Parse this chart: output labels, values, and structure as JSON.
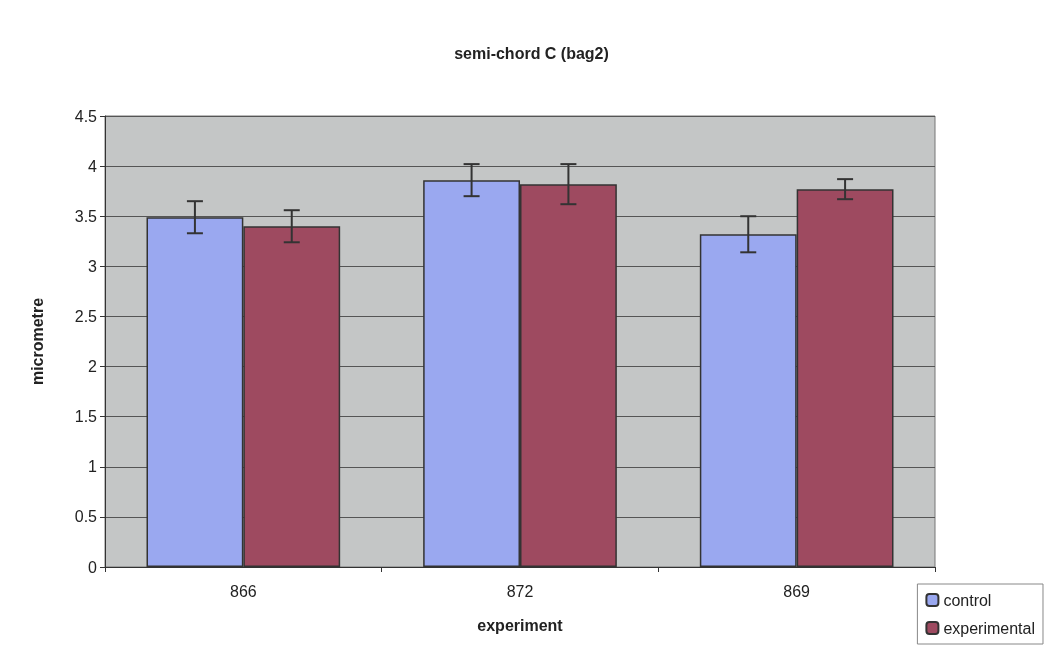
{
  "chart_data": {
    "type": "bar",
    "title": "semi-chord C (bag2)",
    "xlabel": "experiment",
    "ylabel": "micrometre",
    "categories": [
      "866",
      "872",
      "869"
    ],
    "series": [
      {
        "name": "control",
        "color": "#9aa8f0",
        "values": [
          3.49,
          3.86,
          3.32
        ],
        "errors": [
          0.16,
          0.16,
          0.18
        ]
      },
      {
        "name": "experimental",
        "color": "#9e4a60",
        "values": [
          3.4,
          3.82,
          3.77
        ],
        "errors": [
          0.16,
          0.2,
          0.1
        ]
      }
    ],
    "ylim": [
      0,
      4.5
    ],
    "yticks": [
      0,
      0.5,
      1,
      1.5,
      2,
      2.5,
      3,
      3.5,
      4,
      4.5
    ],
    "grid": "y",
    "legend": "bottom right"
  }
}
